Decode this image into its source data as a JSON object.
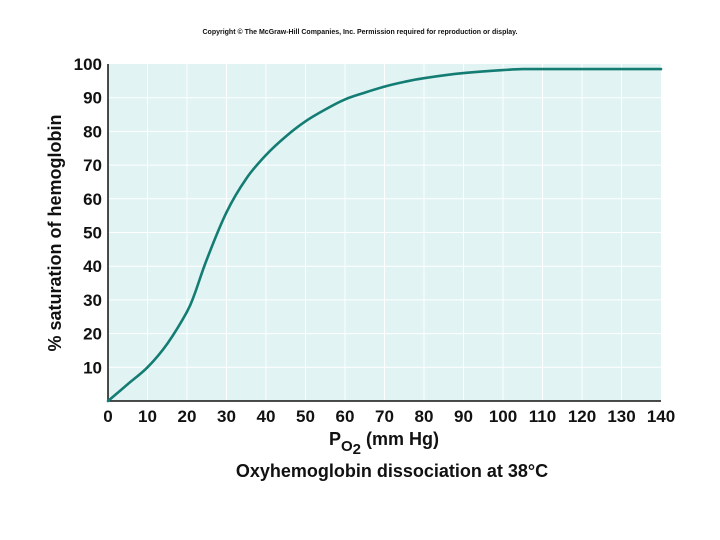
{
  "copyright": "Copyright © The McGraw-Hill Companies, Inc. Permission required for reproduction or display.",
  "colors": {
    "plot_background": "#e1f3f3",
    "grid": "#ffffff",
    "curve": "#147d73",
    "axis": "#111111"
  },
  "chart_data": {
    "type": "line",
    "title": "Oxyhemoglobin dissociation at 38°C",
    "xlabel": {
      "main": "P",
      "subscript": "O",
      "subscript_sub": "2",
      "units": " (mm Hg)"
    },
    "ylabel": "% saturation of hemoglobin",
    "xlim": [
      0,
      140
    ],
    "ylim": [
      0,
      100
    ],
    "xticks": [
      "0",
      "10",
      "20",
      "30",
      "40",
      "50",
      "60",
      "70",
      "80",
      "90",
      "100",
      "110",
      "120",
      "130",
      "140"
    ],
    "yticks": [
      "10",
      "20",
      "30",
      "40",
      "50",
      "60",
      "70",
      "80",
      "90",
      "100"
    ],
    "grid": true,
    "series": [
      {
        "x": [
          0,
          5,
          10,
          15,
          20,
          22,
          25,
          30,
          35,
          40,
          45,
          50,
          55,
          60,
          65,
          70,
          75,
          80,
          90,
          100,
          105,
          110,
          120,
          130,
          140
        ],
        "y": [
          0,
          5,
          10,
          17,
          26.5,
          32,
          42,
          56,
          66,
          73,
          78.5,
          83,
          86.5,
          89.5,
          91.5,
          93.3,
          94.7,
          95.8,
          97.3,
          98.2,
          98.5,
          98.5,
          98.5,
          98.5,
          98.5
        ]
      }
    ]
  }
}
